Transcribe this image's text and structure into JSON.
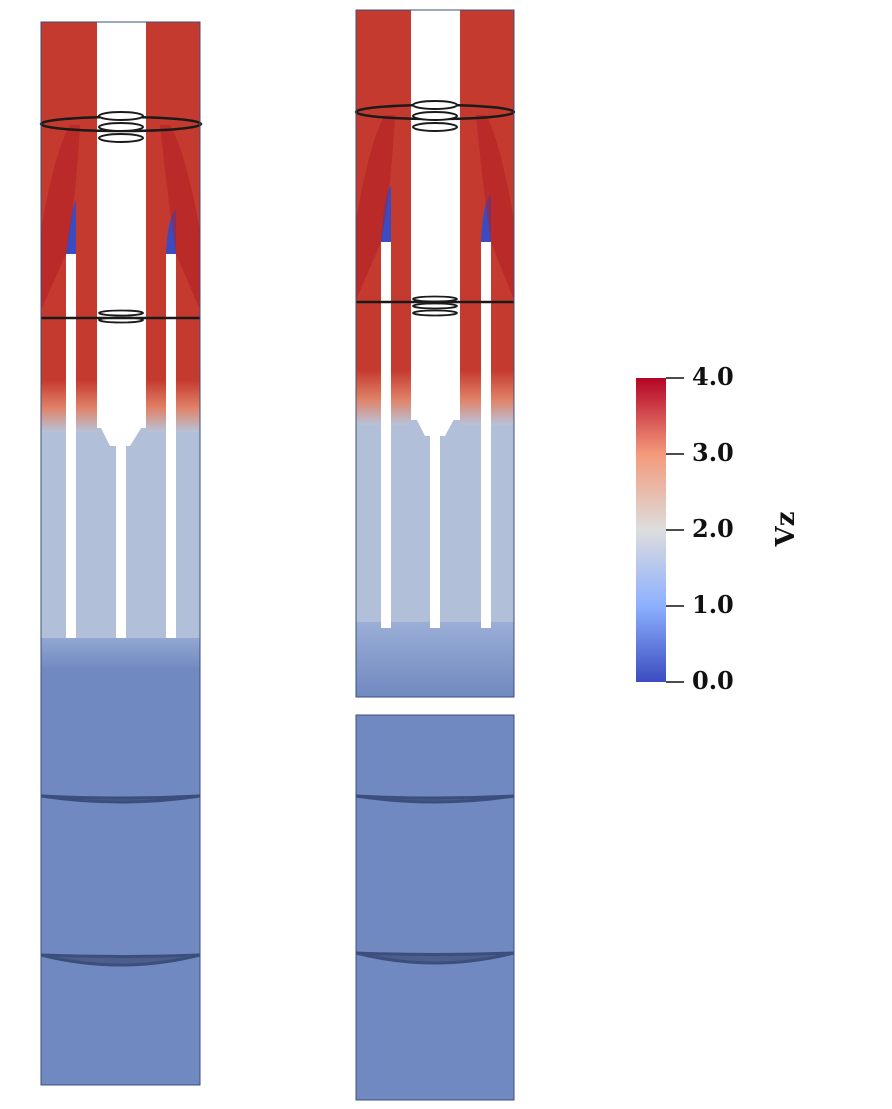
{
  "colorbar": {
    "title": "Vz",
    "ticks": [
      {
        "value": 4.0,
        "label": "4.0"
      },
      {
        "value": 3.0,
        "label": "3.0"
      },
      {
        "value": 2.0,
        "label": "2.0"
      },
      {
        "value": 1.0,
        "label": "1.0"
      },
      {
        "value": 0.0,
        "label": "0.0"
      }
    ],
    "range": [
      0.0,
      4.0
    ],
    "colors": {
      "low": "#3b4cc0",
      "mid": "#dddddd",
      "high": "#b40426"
    }
  },
  "field_colors": {
    "high_flow": "#c53a2e",
    "mid_flow": "#a9b9d8",
    "low_flow": "#7089c0",
    "stagnant": "#3b4cc0",
    "outline": "#1a1a1a"
  }
}
